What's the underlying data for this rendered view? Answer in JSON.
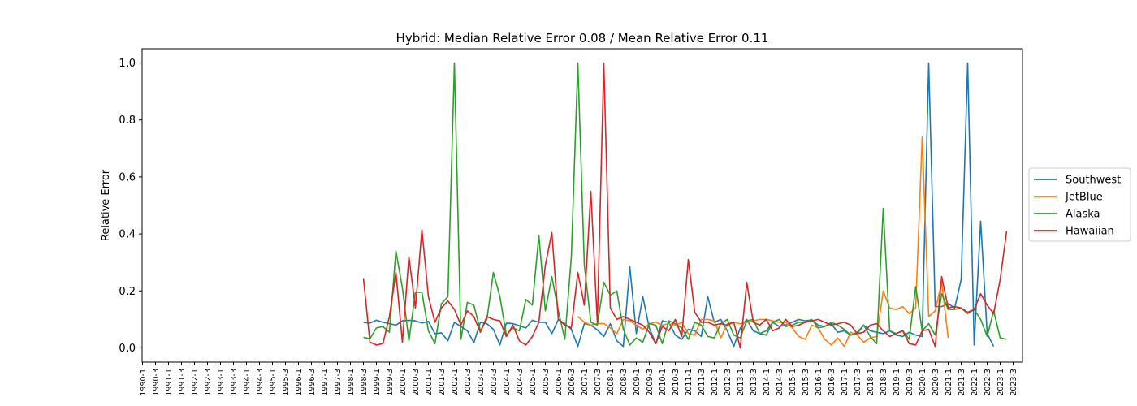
{
  "chart_data": {
    "type": "line",
    "title": "Hybrid: Median Relative Error 0.08 / Mean Relative Error 0.11",
    "xlabel": "",
    "ylabel": "Relative Error",
    "ylim": [
      -0.05,
      1.05
    ],
    "yticks": [
      0.0,
      0.2,
      0.4,
      0.6,
      0.8,
      1.0
    ],
    "yticklabels": [
      "0.0",
      "0.2",
      "0.4",
      "0.6",
      "0.8",
      "1.0"
    ],
    "xticklabels": [
      "1990-1",
      "1990-3",
      "1991-1",
      "1991-3",
      "1992-1",
      "1992-3",
      "1993-1",
      "1993-3",
      "1994-1",
      "1994-3",
      "1995-1",
      "1995-3",
      "1996-1",
      "1996-3",
      "1997-1",
      "1997-3",
      "1998-1",
      "1998-3",
      "1999-1",
      "1999-3",
      "2000-1",
      "2000-3",
      "2001-1",
      "2001-3",
      "2002-1",
      "2002-3",
      "2003-1",
      "2003-3",
      "2004-1",
      "2004-3",
      "2005-1",
      "2005-3",
      "2006-1",
      "2006-3",
      "2007-1",
      "2007-3",
      "2008-1",
      "2008-3",
      "2009-1",
      "2009-3",
      "2010-1",
      "2010-3",
      "2011-1",
      "2011-3",
      "2012-1",
      "2012-3",
      "2013-1",
      "2013-3",
      "2014-1",
      "2014-3",
      "2015-1",
      "2015-3",
      "2016-1",
      "2016-3",
      "2017-1",
      "2017-3",
      "2018-1",
      "2018-3",
      "2019-1",
      "2019-3",
      "2020-1",
      "2020-3",
      "2021-1",
      "2021-3",
      "2022-1",
      "2022-3",
      "2023-1",
      "2023-3"
    ],
    "x_quarter_count": 136,
    "grid": false,
    "legend_position": "right outside, center",
    "series": [
      {
        "name": "Southwest",
        "color": "#1f77b4",
        "start_index": 34,
        "values": [
          0.09,
          0.087,
          0.097,
          0.09,
          0.085,
          0.08,
          0.095,
          0.097,
          0.095,
          0.087,
          0.093,
          0.05,
          0.053,
          0.025,
          0.09,
          0.075,
          0.06,
          0.018,
          0.09,
          0.085,
          0.065,
          0.01,
          0.087,
          0.085,
          0.078,
          0.07,
          0.097,
          0.09,
          0.09,
          0.05,
          0.1,
          0.085,
          0.065,
          0.005,
          0.085,
          0.08,
          0.063,
          0.04,
          0.085,
          0.025,
          0.005,
          0.285,
          0.05,
          0.18,
          0.07,
          0.015,
          0.095,
          0.09,
          0.045,
          0.03,
          0.065,
          0.06,
          0.04,
          0.18,
          0.09,
          0.1,
          0.06,
          0.005,
          0.07,
          0.1,
          0.06,
          0.05,
          0.045,
          0.09,
          0.075,
          0.08,
          0.09,
          0.1,
          0.095,
          0.098,
          0.08,
          0.075,
          0.085,
          0.055,
          0.06,
          0.045,
          0.055,
          0.08,
          0.06,
          0.055,
          0.05,
          0.06,
          0.045,
          0.04,
          0.055,
          0.045,
          0.04,
          1.0,
          0.145,
          0.145,
          0.155,
          0.14,
          0.24,
          1.0,
          0.01,
          0.445,
          0.05,
          0.005
        ]
      },
      {
        "name": "JetBlue",
        "color": "#ff7f0e",
        "start_index": 67,
        "values": [
          0.11,
          0.09,
          0.08,
          0.085,
          0.085,
          0.07,
          0.05,
          0.1,
          0.095,
          0.08,
          0.065,
          0.085,
          0.09,
          0.08,
          0.085,
          0.08,
          0.09,
          0.05,
          0.045,
          0.1,
          0.1,
          0.095,
          0.035,
          0.085,
          0.09,
          0.085,
          0.09,
          0.095,
          0.1,
          0.1,
          0.095,
          0.09,
          0.09,
          0.07,
          0.04,
          0.03,
          0.08,
          0.07,
          0.03,
          0.01,
          0.035,
          0.005,
          0.055,
          0.045,
          0.02,
          0.035,
          0.04,
          0.2,
          0.14,
          0.135,
          0.145,
          0.12,
          0.14,
          0.74,
          0.11,
          0.13,
          0.23,
          0.035
        ]
      },
      {
        "name": "Alaska",
        "color": "#2ca02c",
        "start_index": 34,
        "values": [
          0.037,
          0.032,
          0.07,
          0.075,
          0.055,
          0.34,
          0.21,
          0.025,
          0.195,
          0.195,
          0.06,
          0.015,
          0.155,
          0.18,
          1.0,
          0.03,
          0.16,
          0.15,
          0.06,
          0.1,
          0.265,
          0.18,
          0.045,
          0.07,
          0.06,
          0.17,
          0.15,
          0.395,
          0.13,
          0.25,
          0.13,
          0.03,
          0.32,
          1.0,
          0.29,
          0.09,
          0.08,
          0.23,
          0.185,
          0.2,
          0.065,
          0.01,
          0.035,
          0.02,
          0.085,
          0.08,
          0.015,
          0.095,
          0.085,
          0.07,
          0.03,
          0.09,
          0.08,
          0.04,
          0.035,
          0.085,
          0.1,
          0.045,
          0.035,
          0.095,
          0.1,
          0.05,
          0.06,
          0.09,
          0.1,
          0.075,
          0.08,
          0.09,
          0.09,
          0.1,
          0.07,
          0.075,
          0.09,
          0.08,
          0.065,
          0.045,
          0.05,
          0.08,
          0.04,
          0.015,
          0.49,
          0.06,
          0.05,
          0.06,
          0.03,
          0.215,
          0.06,
          0.085,
          0.045,
          0.19,
          0.135,
          0.135,
          0.14,
          0.12,
          0.135,
          0.1,
          0.04,
          0.13,
          0.035,
          0.03
        ]
      },
      {
        "name": "Hawaiian",
        "color": "#d62728",
        "start_index": 34,
        "values": [
          0.245,
          0.02,
          0.01,
          0.015,
          0.11,
          0.265,
          0.02,
          0.32,
          0.14,
          0.415,
          0.18,
          0.09,
          0.14,
          0.165,
          0.135,
          0.08,
          0.13,
          0.11,
          0.055,
          0.11,
          0.1,
          0.095,
          0.04,
          0.08,
          0.025,
          0.01,
          0.04,
          0.09,
          0.29,
          0.405,
          0.1,
          0.08,
          0.07,
          0.265,
          0.15,
          0.55,
          0.09,
          1.0,
          0.14,
          0.1,
          0.11,
          0.1,
          0.09,
          0.08,
          0.055,
          0.015,
          0.075,
          0.06,
          0.1,
          0.04,
          0.31,
          0.125,
          0.09,
          0.09,
          0.08,
          0.085,
          0.08,
          0.09,
          0.0,
          0.23,
          0.09,
          0.08,
          0.1,
          0.06,
          0.07,
          0.1,
          0.075,
          0.08,
          0.09,
          0.095,
          0.1,
          0.09,
          0.08,
          0.085,
          0.09,
          0.08,
          0.05,
          0.055,
          0.08,
          0.085,
          0.06,
          0.04,
          0.05,
          0.06,
          0.015,
          0.01,
          0.06,
          0.065,
          0.005,
          0.25,
          0.14,
          0.145,
          0.14,
          0.125,
          0.135,
          0.19,
          0.15,
          0.12,
          0.24,
          0.41
        ]
      }
    ]
  }
}
